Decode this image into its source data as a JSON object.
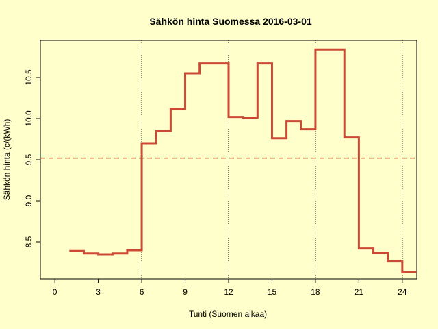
{
  "chart_data": {
    "type": "line",
    "title": "Sähkön hinta Suomessa 2016-03-01",
    "xlabel": "Tunti (Suomen aikaa)",
    "ylabel": "Sähkön hinta (c/(kWh)",
    "xlim": [
      -1,
      25
    ],
    "ylim": [
      8.05,
      10.95
    ],
    "x_ticks": [
      0,
      3,
      6,
      9,
      12,
      15,
      18,
      21,
      24
    ],
    "y_ticks": [
      8.5,
      9.0,
      9.5,
      10.0,
      10.5
    ],
    "y_tick_labels": [
      "8.5",
      "9.0",
      "9.5",
      "10.0",
      "10.5"
    ],
    "vlines": [
      6,
      12,
      18,
      24
    ],
    "hline": {
      "value": 9.52,
      "style": "dashed"
    },
    "series": [
      {
        "step": "post",
        "x": [
          1,
          2,
          3,
          4,
          5,
          6,
          7,
          8,
          9,
          10,
          11,
          12,
          13,
          14,
          15,
          16,
          17,
          18,
          19,
          20,
          21,
          22,
          23,
          24,
          25
        ],
        "values": [
          8.39,
          8.36,
          8.35,
          8.36,
          8.4,
          9.7,
          9.85,
          10.12,
          10.55,
          10.67,
          10.67,
          10.02,
          10.01,
          10.67,
          9.76,
          9.97,
          9.87,
          10.84,
          10.84,
          9.77,
          8.42,
          8.37,
          8.27,
          8.13,
          8.13
        ]
      }
    ],
    "colors": {
      "series": "#CC4A35",
      "hline": "#CC4A35",
      "vline": "#000000",
      "background": "#FFFFCC"
    }
  }
}
